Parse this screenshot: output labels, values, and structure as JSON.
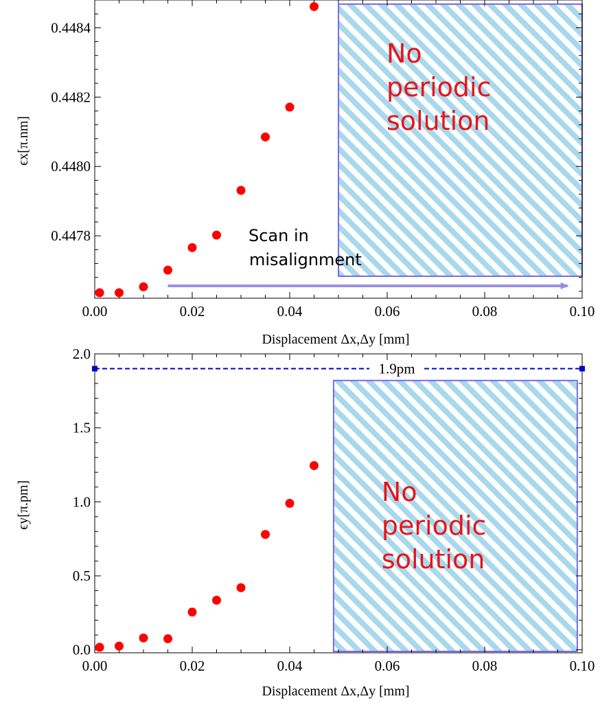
{
  "chart_data": [
    {
      "type": "scatter",
      "xlabel": "Displacement Δx,Δy [mm]",
      "ylabel": "ϵx[π.nm]",
      "xlim": [
        0.0,
        0.1
      ],
      "ylim": [
        0.44762,
        0.44848
      ],
      "xticks": [
        0.0,
        0.02,
        0.04,
        0.06,
        0.08,
        0.1
      ],
      "xtick_labels": [
        "0.00",
        "0.02",
        "0.04",
        "0.06",
        "0.08",
        "0.10"
      ],
      "yticks": [
        0.4478,
        0.448,
        0.4482,
        0.4484
      ],
      "ytick_labels": [
        "0.4478",
        "0.4480",
        "0.4482",
        "0.4484"
      ],
      "grid": false,
      "marker_color": "#ff0000",
      "series": [
        {
          "x": [
            0.001,
            0.005,
            0.01,
            0.015,
            0.02,
            0.025,
            0.03,
            0.035,
            0.04,
            0.045
          ],
          "y": [
            0.44763,
            0.447628,
            0.447653,
            0.447701,
            0.447766,
            0.447802,
            0.447931,
            0.448085,
            0.448171,
            0.448461
          ]
        }
      ],
      "region": {
        "x_start": 0.05,
        "x_end": 0.1,
        "label_lines": [
          "No",
          "periodic",
          "solution"
        ],
        "label_color": "#e8141a",
        "border_color": "#7b68ee",
        "hatch_color": "#a8d8ec"
      },
      "annotation": {
        "text_lines": [
          "Scan in",
          "misalignment"
        ],
        "arrow_from_x": 0.015,
        "arrow_to_x": 0.097,
        "arrow_color": "#9b8fe0"
      }
    },
    {
      "type": "scatter",
      "xlabel": "Displacement Δx,Δy [mm]",
      "ylabel": "ϵy[π.pm]",
      "xlim": [
        0.0,
        0.1
      ],
      "ylim": [
        -0.02,
        2.0
      ],
      "xticks": [
        0.0,
        0.02,
        0.04,
        0.06,
        0.08,
        0.1
      ],
      "xtick_labels": [
        "0.00",
        "0.02",
        "0.04",
        "0.06",
        "0.08",
        "0.10"
      ],
      "yticks": [
        0.0,
        0.5,
        1.0,
        1.5,
        2.0
      ],
      "ytick_labels": [
        "0.0",
        "0.5",
        "1.0",
        "1.5",
        "2.0"
      ],
      "grid": false,
      "marker_color": "#ff0000",
      "series": [
        {
          "x": [
            0.001,
            0.005,
            0.01,
            0.015,
            0.02,
            0.025,
            0.03,
            0.035,
            0.04,
            0.045
          ],
          "y": [
            0.01,
            0.025,
            0.08,
            0.075,
            0.255,
            0.335,
            0.42,
            0.78,
            0.99,
            1.245
          ]
        }
      ],
      "reference_line": {
        "y": 1.9,
        "label": "1.9pm",
        "color": "#0000cc"
      },
      "region": {
        "x_start": 0.049,
        "x_end": 0.099,
        "y_top": 1.82,
        "label_lines": [
          "No",
          "periodic",
          "solution"
        ],
        "label_color": "#e8141a",
        "border_color": "#7b68ee",
        "hatch_color": "#a8d8ec"
      }
    }
  ]
}
